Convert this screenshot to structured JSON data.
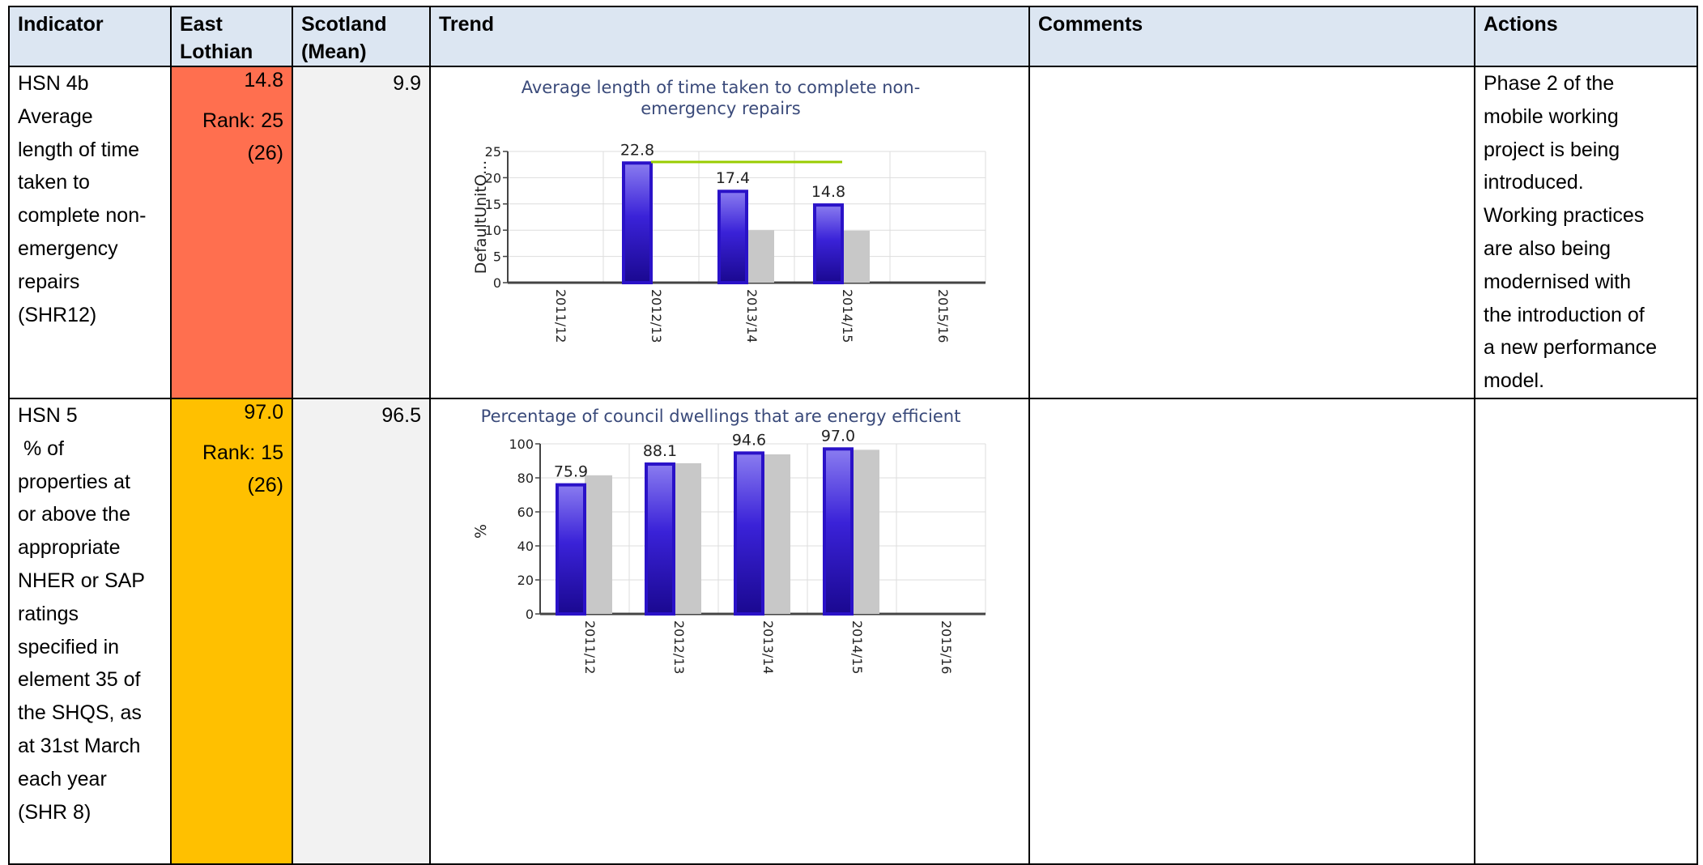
{
  "headers": {
    "indicator": "Indicator",
    "east_lothian_1": "East",
    "east_lothian_2": "Lothian",
    "scotland_1": "Scotland",
    "scotland_2": "(Mean)",
    "trend": "Trend",
    "comments": "Comments",
    "actions": "Actions"
  },
  "rows": [
    {
      "indicator_lines": [
        "HSN 4b",
        "Average",
        "length of time",
        "taken to",
        "complete non-",
        "emergency",
        "repairs",
        "(SHR12)"
      ],
      "east_lothian_value": "14.8",
      "rank": "Rank: 25",
      "rank_out_of": "(26)",
      "status_color": "#ff6f4f",
      "scotland_mean": "9.9",
      "comments": "",
      "actions_lines": [
        "Phase 2 of the",
        "mobile working",
        "project is being",
        "introduced.",
        "Working practices",
        "are also being",
        "modernised with",
        "the introduction of",
        "a new performance",
        "model."
      ]
    },
    {
      "indicator_lines": [
        "HSN 5",
        " % of",
        "properties at",
        "or above the",
        "appropriate",
        "NHER or SAP",
        "ratings",
        "specified in",
        "element 35 of",
        "the SHQS, as",
        "at 31st March",
        "each year",
        "(SHR 8)"
      ],
      "east_lothian_value": "97.0",
      "rank": "Rank: 15",
      "rank_out_of": "(26)",
      "status_color": "#ffc000",
      "scotland_mean": "96.5",
      "comments": "",
      "actions_lines": []
    }
  ],
  "chart_data": [
    {
      "type": "bar",
      "title_lines": [
        "Average length of time taken to complete non-",
        "emergency repairs"
      ],
      "ylabel": "DefaultUnitO...",
      "xlabel": "",
      "ylim": [
        0,
        25
      ],
      "yticks": [
        "0",
        "5",
        "10",
        "15",
        "20",
        "25"
      ],
      "categories": [
        "2011/12",
        "2012/13",
        "2013/14",
        "2014/15",
        "2015/16"
      ],
      "series": [
        {
          "values": [
            null,
            22.8,
            17.4,
            14.8,
            null
          ],
          "color": "#2a12c8"
        },
        {
          "values": [
            null,
            null,
            10.0,
            9.9,
            null
          ],
          "color": "#c8c8c8"
        }
      ],
      "data_labels": [
        "",
        "22.8",
        "17.4",
        "14.8",
        ""
      ],
      "target_line": {
        "value": 23,
        "from": "2012/13",
        "to": "2014/15",
        "color": "#99cc00"
      },
      "grid": true
    },
    {
      "type": "bar",
      "title_lines": [
        "Percentage of council dwellings that are energy efficient"
      ],
      "ylabel": "%",
      "xlabel": "",
      "ylim": [
        0,
        100
      ],
      "yticks": [
        "0",
        "20",
        "40",
        "60",
        "80",
        "100"
      ],
      "categories": [
        "2011/12",
        "2012/13",
        "2013/14",
        "2014/15",
        "2015/16"
      ],
      "series": [
        {
          "values": [
            75.9,
            88.1,
            94.6,
            97.0,
            null
          ],
          "color": "#2a12c8"
        },
        {
          "values": [
            81.5,
            88.6,
            93.8,
            96.5,
            null
          ],
          "color": "#c8c8c8"
        }
      ],
      "data_labels": [
        "75.9",
        "88.1",
        "94.6",
        "97.0",
        ""
      ],
      "grid": true
    }
  ]
}
